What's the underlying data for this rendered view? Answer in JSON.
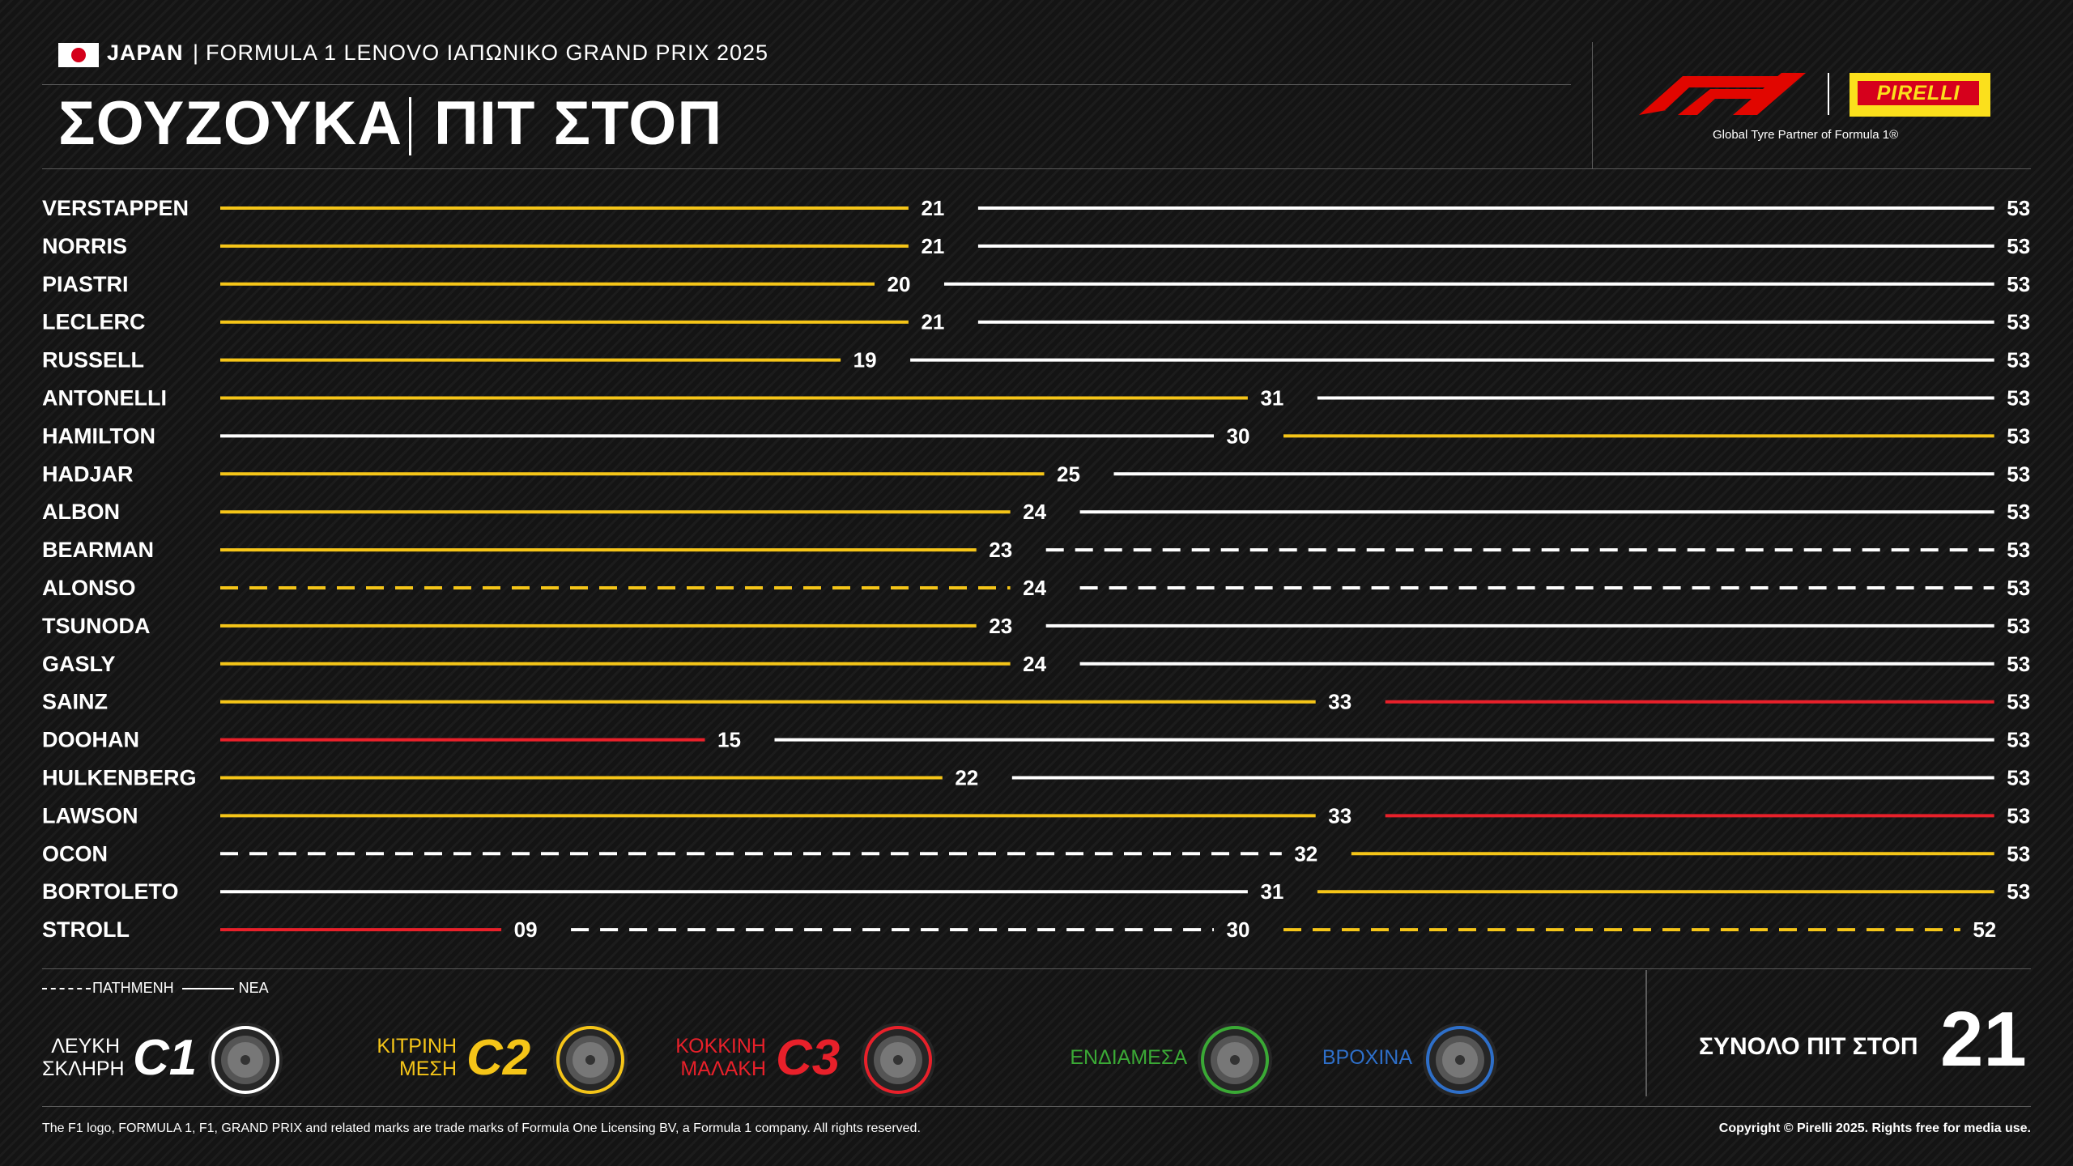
{
  "header": {
    "country": "JAPAN",
    "separator": "|",
    "event": "FORMULA 1 LENOVO ΙΑΠΩΝΙΚΟ GRAND PRIX 2025",
    "title": "ΣΟΥΖΟΥΚΑ",
    "subtitle": "ΠΙΤ ΣΤΟΠ",
    "pirelli": "PIRELLI",
    "tagline": "Global Tyre Partner of Formula 1®"
  },
  "colors": {
    "hard": "#ffffff",
    "medium": "#f5c518",
    "soft": "#e8202a",
    "intermediate": "#3aa935",
    "wet": "#2e6fc9",
    "background": "#141414"
  },
  "chart_data": {
    "type": "stint",
    "race_laps": 53,
    "drivers": [
      {
        "name": "VERSTAPPEN",
        "stints": [
          {
            "end": 21,
            "label": "21",
            "compound": "medium",
            "used": false
          },
          {
            "end": 53,
            "label": "53",
            "compound": "hard",
            "used": false
          }
        ]
      },
      {
        "name": "NORRIS",
        "stints": [
          {
            "end": 21,
            "label": "21",
            "compound": "medium",
            "used": false
          },
          {
            "end": 53,
            "label": "53",
            "compound": "hard",
            "used": false
          }
        ]
      },
      {
        "name": "PIASTRI",
        "stints": [
          {
            "end": 20,
            "label": "20",
            "compound": "medium",
            "used": false
          },
          {
            "end": 53,
            "label": "53",
            "compound": "hard",
            "used": false
          }
        ]
      },
      {
        "name": "LECLERC",
        "stints": [
          {
            "end": 21,
            "label": "21",
            "compound": "medium",
            "used": false
          },
          {
            "end": 53,
            "label": "53",
            "compound": "hard",
            "used": false
          }
        ]
      },
      {
        "name": "RUSSELL",
        "stints": [
          {
            "end": 19,
            "label": "19",
            "compound": "medium",
            "used": false
          },
          {
            "end": 53,
            "label": "53",
            "compound": "hard",
            "used": false
          }
        ]
      },
      {
        "name": "ANTONELLI",
        "stints": [
          {
            "end": 31,
            "label": "31",
            "compound": "medium",
            "used": false
          },
          {
            "end": 53,
            "label": "53",
            "compound": "hard",
            "used": false
          }
        ]
      },
      {
        "name": "HAMILTON",
        "stints": [
          {
            "end": 30,
            "label": "30",
            "compound": "hard",
            "used": false
          },
          {
            "end": 53,
            "label": "53",
            "compound": "medium",
            "used": false
          }
        ]
      },
      {
        "name": "HADJAR",
        "stints": [
          {
            "end": 25,
            "label": "25",
            "compound": "medium",
            "used": false
          },
          {
            "end": 53,
            "label": "53",
            "compound": "hard",
            "used": false
          }
        ]
      },
      {
        "name": "ALBON",
        "stints": [
          {
            "end": 24,
            "label": "24",
            "compound": "medium",
            "used": false
          },
          {
            "end": 53,
            "label": "53",
            "compound": "hard",
            "used": false
          }
        ]
      },
      {
        "name": "BEARMAN",
        "stints": [
          {
            "end": 23,
            "label": "23",
            "compound": "medium",
            "used": false
          },
          {
            "end": 53,
            "label": "53",
            "compound": "hard",
            "used": true
          }
        ]
      },
      {
        "name": "ALONSO",
        "stints": [
          {
            "end": 24,
            "label": "24",
            "compound": "medium",
            "used": true
          },
          {
            "end": 53,
            "label": "53",
            "compound": "hard",
            "used": true
          }
        ]
      },
      {
        "name": "TSUNODA",
        "stints": [
          {
            "end": 23,
            "label": "23",
            "compound": "medium",
            "used": false
          },
          {
            "end": 53,
            "label": "53",
            "compound": "hard",
            "used": false
          }
        ]
      },
      {
        "name": "GASLY",
        "stints": [
          {
            "end": 24,
            "label": "24",
            "compound": "medium",
            "used": false
          },
          {
            "end": 53,
            "label": "53",
            "compound": "hard",
            "used": false
          }
        ]
      },
      {
        "name": "SAINZ",
        "stints": [
          {
            "end": 33,
            "label": "33",
            "compound": "medium",
            "used": false
          },
          {
            "end": 53,
            "label": "53",
            "compound": "soft",
            "used": false
          }
        ]
      },
      {
        "name": "DOOHAN",
        "stints": [
          {
            "end": 15,
            "label": "15",
            "compound": "soft",
            "used": false
          },
          {
            "end": 53,
            "label": "53",
            "compound": "hard",
            "used": false
          }
        ]
      },
      {
        "name": "HULKENBERG",
        "stints": [
          {
            "end": 22,
            "label": "22",
            "compound": "medium",
            "used": false
          },
          {
            "end": 53,
            "label": "53",
            "compound": "hard",
            "used": false
          }
        ]
      },
      {
        "name": "LAWSON",
        "stints": [
          {
            "end": 33,
            "label": "33",
            "compound": "medium",
            "used": false
          },
          {
            "end": 53,
            "label": "53",
            "compound": "soft",
            "used": false
          }
        ]
      },
      {
        "name": "OCON",
        "stints": [
          {
            "end": 32,
            "label": "32",
            "compound": "hard",
            "used": true
          },
          {
            "end": 53,
            "label": "53",
            "compound": "medium",
            "used": false
          }
        ]
      },
      {
        "name": "BORTOLETO",
        "stints": [
          {
            "end": 31,
            "label": "31",
            "compound": "hard",
            "used": false
          },
          {
            "end": 53,
            "label": "53",
            "compound": "medium",
            "used": false
          }
        ]
      },
      {
        "name": "STROLL",
        "stints": [
          {
            "end": 9,
            "label": "09",
            "compound": "soft",
            "used": false
          },
          {
            "end": 30,
            "label": "30",
            "compound": "hard",
            "used": true
          },
          {
            "end": 52,
            "label": "52",
            "compound": "medium",
            "used": true
          }
        ]
      }
    ]
  },
  "legend": {
    "used": "ΠΑΤΗΜΕΝΗ",
    "new": "ΝΕΑ",
    "tyres": [
      {
        "line1": "ΛΕΥΚΗ",
        "line2": "ΣΚΛΗΡΗ",
        "code": "C1",
        "color": "#ffffff",
        "icon": "hard-tyre-icon"
      },
      {
        "line1": "ΚΙΤΡΙΝΗ",
        "line2": "ΜΕΣΗ",
        "code": "C2",
        "color": "#f5c518",
        "icon": "medium-tyre-icon"
      },
      {
        "line1": "ΚΟΚΚΙΝΗ",
        "line2": "ΜΑΛΑΚΗ",
        "code": "C3",
        "color": "#e8202a",
        "icon": "soft-tyre-icon"
      },
      {
        "line1": "ΕΝΔΙΑΜΕΣΑ",
        "line2": "",
        "code": "",
        "color": "#3aa935",
        "icon": "intermediate-tyre-icon"
      },
      {
        "line1": "ΒΡΟΧΙΝΑ",
        "line2": "",
        "code": "",
        "color": "#2e6fc9",
        "icon": "wet-tyre-icon"
      }
    ]
  },
  "total": {
    "label": "ΣΥΝΟΛΟ ΠΙΤ ΣΤΟΠ",
    "value": "21"
  },
  "footer": {
    "left": "The F1 logo, FORMULA 1, F1, GRAND PRIX and related marks are trade marks of Formula One Licensing BV, a Formula 1 company. All rights reserved.",
    "right": "Copyright © Pirelli 2025. Rights free for media use."
  }
}
